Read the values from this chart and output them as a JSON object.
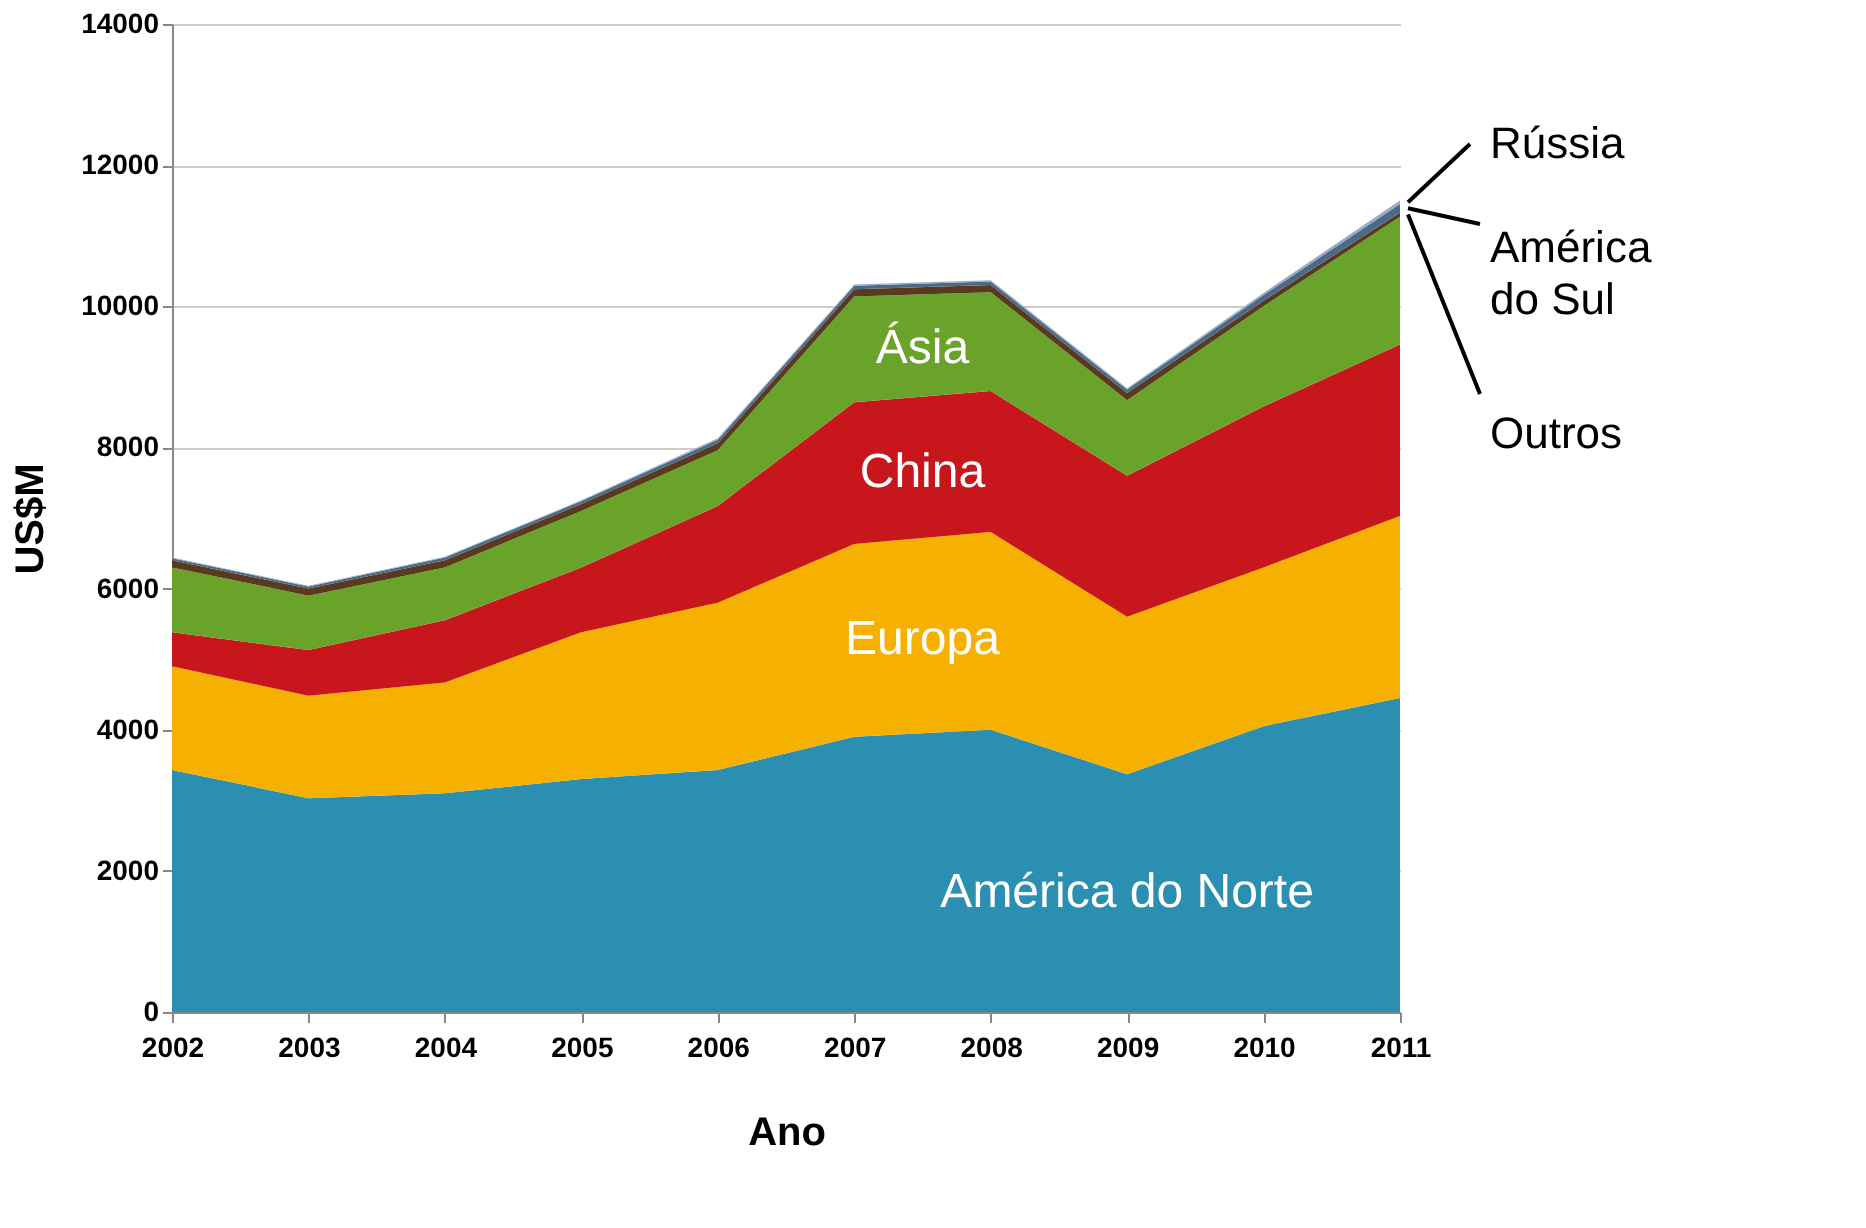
{
  "chart_data": {
    "type": "area",
    "stacked": true,
    "xlabel": "Ano",
    "ylabel": "US$M",
    "categories": [
      "2002",
      "2003",
      "2004",
      "2005",
      "2006",
      "2007",
      "2008",
      "2009",
      "2010",
      "2011"
    ],
    "series": [
      {
        "name": "América do Norte",
        "color": "#2a8fb0",
        "values": [
          3430,
          3030,
          3100,
          3300,
          3430,
          3900,
          4000,
          3370,
          4050,
          4450
        ]
      },
      {
        "name": "Europa",
        "color": "#f5b000",
        "values": [
          1470,
          1450,
          1570,
          2080,
          2370,
          2730,
          2800,
          2230,
          2250,
          2580
        ]
      },
      {
        "name": "China",
        "color": "#c8161d",
        "values": [
          480,
          650,
          880,
          920,
          1370,
          2010,
          2000,
          2000,
          2280,
          2430
        ]
      },
      {
        "name": "Ásia",
        "color": "#6aa32a",
        "values": [
          920,
          770,
          750,
          800,
          790,
          1500,
          1400,
          1070,
          1420,
          1810
        ]
      },
      {
        "name": "Outros",
        "color": "#5a3a1e",
        "values": [
          100,
          100,
          100,
          100,
          100,
          100,
          100,
          100,
          80,
          60
        ]
      },
      {
        "name": "América do Sul",
        "color": "#4a6a8a",
        "values": [
          30,
          30,
          40,
          40,
          50,
          50,
          50,
          50,
          80,
          120
        ]
      },
      {
        "name": "Rússia",
        "color": "#9aa8c0",
        "values": [
          10,
          10,
          10,
          10,
          20,
          20,
          20,
          20,
          30,
          50
        ]
      }
    ],
    "ylim": [
      0,
      14000
    ],
    "yticks": [
      0,
      2000,
      4000,
      6000,
      8000,
      10000,
      12000,
      14000
    ],
    "grid": "y"
  }
}
